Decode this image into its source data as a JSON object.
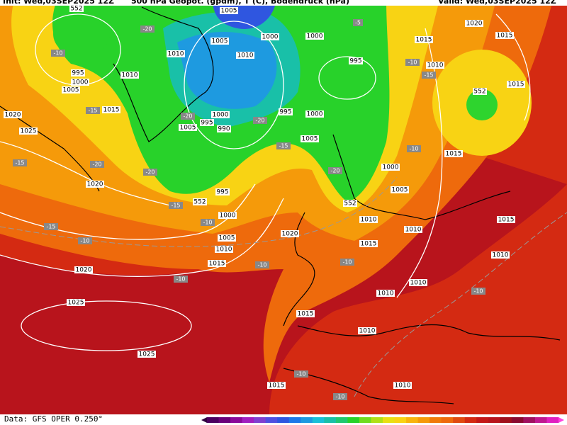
{
  "header": {
    "left": "Init: Wed,03SEP2025 12Z",
    "center": "500 hPa Geopot. (gpdm), T (C), Bodendruck (hPa)",
    "right": "Valid: Wed,03SEP2025 12Z"
  },
  "footer": {
    "source": "Data: GFS OPER 0.250°"
  },
  "isobar_labels": [
    "1005",
    "1010",
    "1005",
    "1010",
    "1000",
    "1000",
    "1015",
    "1020",
    "1015",
    "995",
    "1000",
    "1005",
    "1010",
    "995",
    "1010",
    "1015",
    "1020",
    "1015",
    "1025",
    "1000",
    "995",
    "1005",
    "990",
    "995",
    "1000",
    "1005",
    "1015",
    "1000",
    "1005",
    "1020",
    "995",
    "1000",
    "1010",
    "1010",
    "1015",
    "1020",
    "1005",
    "1010",
    "1015",
    "1015",
    "1020",
    "1010",
    "1010",
    "1010",
    "1025",
    "1015",
    "1010",
    "1025",
    "1015",
    "1010"
  ],
  "geopotential_labels": [
    "552",
    "552",
    "552",
    "552"
  ],
  "temperature_labels": [
    "-10",
    "-20",
    "-15",
    "-20",
    "-15",
    "-20",
    "-20",
    "-15",
    "-20",
    "-15",
    "-10",
    "-15",
    "-10",
    "-10",
    "-20",
    "-5",
    "-10",
    "-15",
    "-10",
    "-10",
    "-10",
    "-10",
    "-10",
    "-10"
  ]
}
